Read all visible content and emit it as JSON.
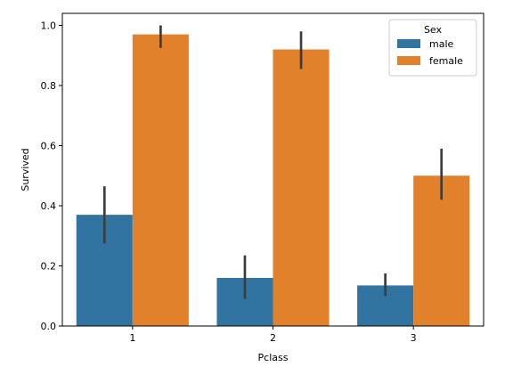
{
  "chart_data": {
    "type": "bar",
    "xlabel": "Pclass",
    "ylabel": "Survived",
    "categories": [
      "1",
      "2",
      "3"
    ],
    "ylim": [
      0,
      1.04
    ],
    "yticks": [
      0.0,
      0.2,
      0.4,
      0.6,
      0.8,
      1.0
    ],
    "ytick_labels": [
      "0.0",
      "0.2",
      "0.4",
      "0.6",
      "0.8",
      "1.0"
    ],
    "grid": false,
    "legend": {
      "title": "Sex",
      "placement": "top-right"
    },
    "series": [
      {
        "name": "male",
        "color": "#3274a1",
        "values": [
          0.37,
          0.16,
          0.135
        ],
        "ci_low": [
          0.275,
          0.09,
          0.1
        ],
        "ci_high": [
          0.465,
          0.235,
          0.175
        ]
      },
      {
        "name": "female",
        "color": "#e1812c",
        "values": [
          0.97,
          0.92,
          0.5
        ],
        "ci_low": [
          0.925,
          0.855,
          0.42
        ],
        "ci_high": [
          1.0,
          0.98,
          0.59
        ]
      }
    ],
    "errorbar_color": "#3d3d3d"
  }
}
